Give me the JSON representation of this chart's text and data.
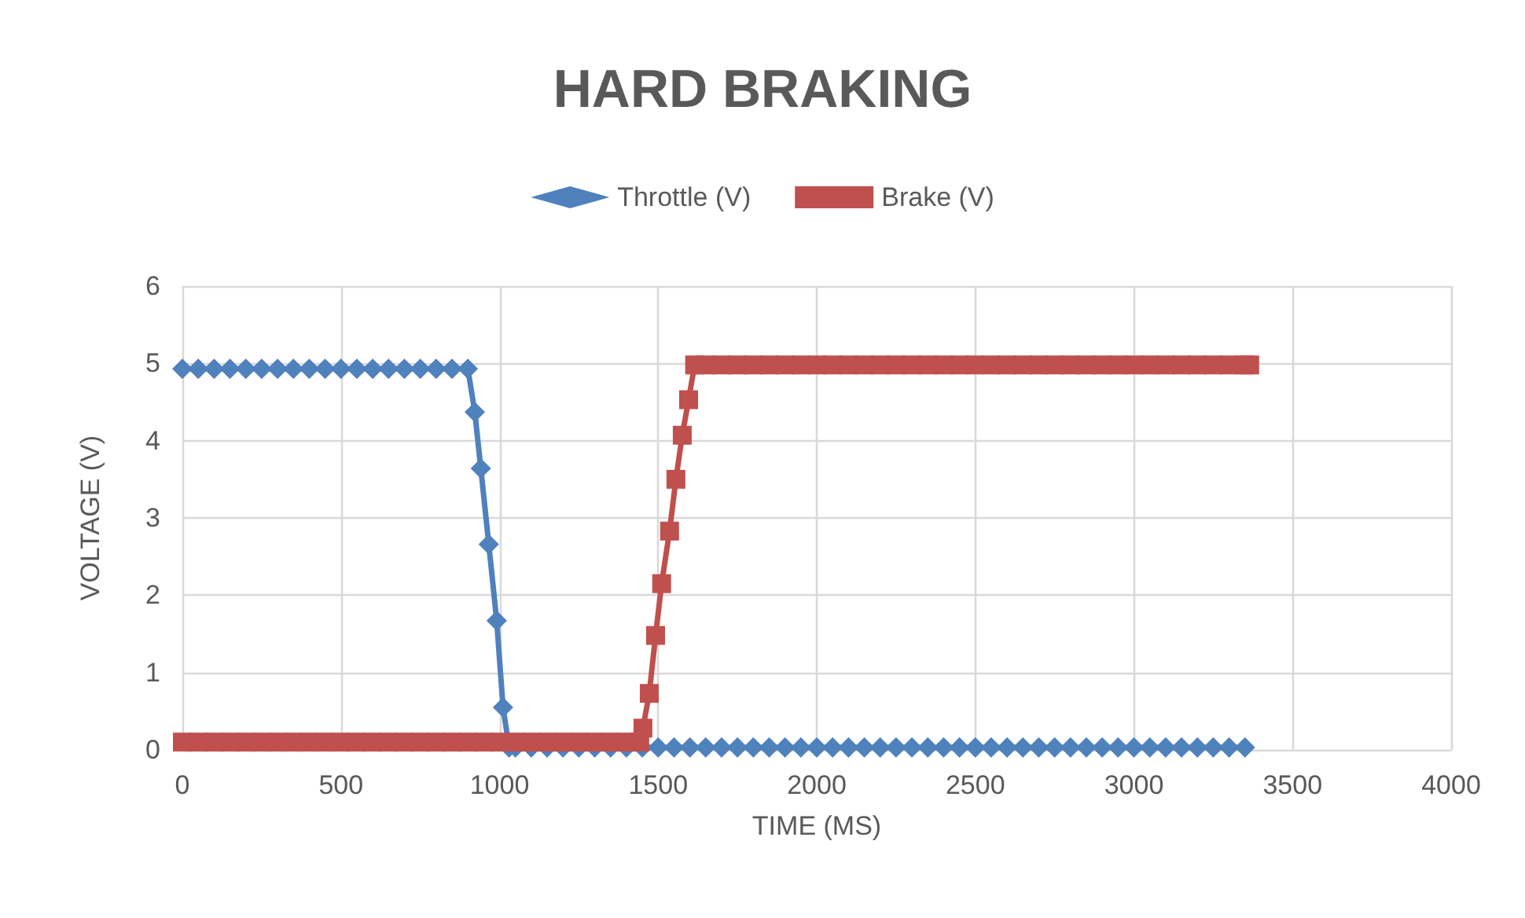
{
  "chart_data": {
    "type": "line",
    "title": "HARD BRAKING",
    "xlabel": "TIME (MS)",
    "ylabel": "VOLTAGE (V)",
    "xlim": [
      0,
      4000
    ],
    "xticks": [
      0,
      500,
      1000,
      1500,
      2000,
      2500,
      3000,
      3500,
      4000
    ],
    "ylim": [
      0,
      6
    ],
    "yticks": [
      0,
      1,
      2,
      3,
      4,
      5,
      6
    ],
    "grid": true,
    "legend": "top",
    "series": [
      {
        "name": "Throttle (V)",
        "color": "#4f81bd",
        "marker": "diamond",
        "x": [
          0,
          50,
          100,
          150,
          200,
          250,
          300,
          350,
          400,
          450,
          500,
          550,
          600,
          650,
          700,
          750,
          800,
          850,
          900,
          922,
          941,
          966,
          991,
          1011,
          1030,
          1050,
          1100,
          1150,
          1200,
          1250,
          1300,
          1350,
          1400,
          1450,
          1500,
          1550,
          1600,
          1650,
          1700,
          1750,
          1800,
          1850,
          1900,
          1950,
          2000,
          2050,
          2100,
          2150,
          2200,
          2250,
          2300,
          2350,
          2400,
          2450,
          2500,
          2550,
          2600,
          2650,
          2700,
          2750,
          2800,
          2850,
          2900,
          2950,
          3000,
          3050,
          3100,
          3150,
          3200,
          3250,
          3300,
          3350
        ],
        "values": [
          4.93,
          4.93,
          4.93,
          4.93,
          4.93,
          4.93,
          4.93,
          4.93,
          4.93,
          4.93,
          4.93,
          4.93,
          4.93,
          4.93,
          4.93,
          4.93,
          4.93,
          4.93,
          4.93,
          4.37,
          3.64,
          2.66,
          1.67,
          0.55,
          0.03,
          0.03,
          0.03,
          0.03,
          0.03,
          0.03,
          0.03,
          0.03,
          0.03,
          0.03,
          0.03,
          0.03,
          0.03,
          0.03,
          0.03,
          0.03,
          0.03,
          0.03,
          0.03,
          0.03,
          0.03,
          0.03,
          0.03,
          0.03,
          0.03,
          0.03,
          0.03,
          0.03,
          0.03,
          0.03,
          0.03,
          0.03,
          0.03,
          0.03,
          0.03,
          0.03,
          0.03,
          0.03,
          0.03,
          0.03,
          0.03,
          0.03,
          0.03,
          0.03,
          0.03,
          0.03,
          0.03,
          0.03
        ]
      },
      {
        "name": "Brake (V)",
        "color": "#c0504d",
        "marker": "square",
        "x": [
          0,
          50,
          100,
          150,
          200,
          250,
          300,
          350,
          400,
          450,
          500,
          550,
          600,
          650,
          700,
          750,
          800,
          850,
          900,
          950,
          1000,
          1050,
          1100,
          1150,
          1200,
          1250,
          1300,
          1350,
          1400,
          1442,
          1452,
          1472,
          1492,
          1511,
          1536,
          1556,
          1576,
          1596,
          1615,
          1650,
          1700,
          1750,
          1800,
          1850,
          1900,
          1950,
          2000,
          2050,
          2100,
          2150,
          2200,
          2250,
          2300,
          2350,
          2400,
          2450,
          2500,
          2550,
          2600,
          2650,
          2700,
          2750,
          2800,
          2850,
          2900,
          2950,
          3000,
          3050,
          3100,
          3150,
          3200,
          3250,
          3300,
          3350,
          3365
        ],
        "values": [
          0.1,
          0.1,
          0.1,
          0.1,
          0.1,
          0.1,
          0.1,
          0.1,
          0.1,
          0.1,
          0.1,
          0.1,
          0.1,
          0.1,
          0.1,
          0.1,
          0.1,
          0.1,
          0.1,
          0.1,
          0.1,
          0.1,
          0.1,
          0.1,
          0.1,
          0.1,
          0.1,
          0.1,
          0.1,
          0.1,
          0.28,
          0.73,
          1.48,
          2.15,
          2.83,
          3.5,
          4.07,
          4.53,
          4.98,
          4.98,
          4.98,
          4.98,
          4.98,
          4.98,
          4.98,
          4.98,
          4.98,
          4.98,
          4.98,
          4.98,
          4.98,
          4.98,
          4.98,
          4.98,
          4.98,
          4.98,
          4.98,
          4.98,
          4.98,
          4.98,
          4.98,
          4.98,
          4.98,
          4.98,
          4.98,
          4.98,
          4.98,
          4.98,
          4.98,
          4.98,
          4.98,
          4.98,
          4.98,
          4.98,
          4.98
        ]
      }
    ]
  }
}
